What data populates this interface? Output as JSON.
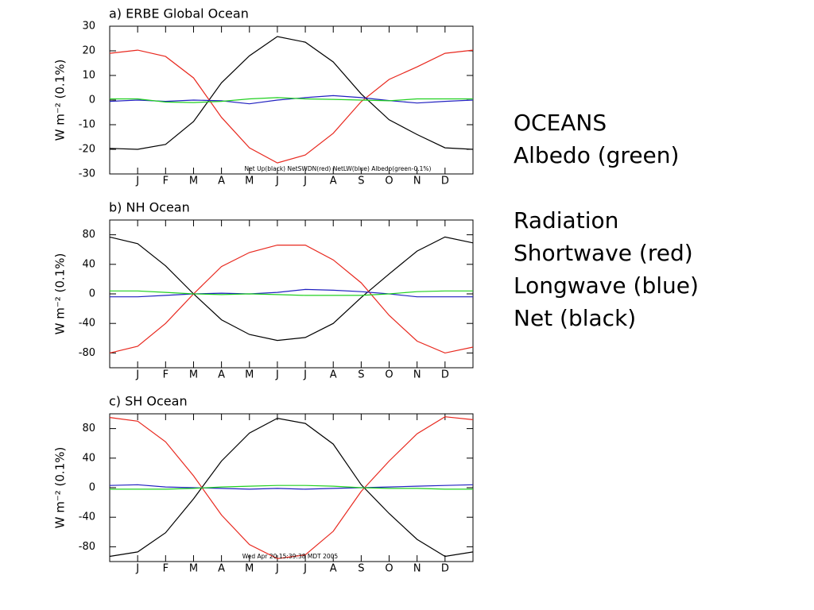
{
  "chart_data": [
    {
      "type": "line",
      "title": "a) ERBE Global Ocean",
      "ylabel": "W m⁻² (0.1%)",
      "annotation": "Net Up(black) NetSWDN(red) NetLW(blue) Albedo(green-0.1%)",
      "categories": [
        null,
        "J",
        "F",
        "M",
        "A",
        "M",
        "J",
        "J",
        "A",
        "S",
        "O",
        "N",
        "D",
        null
      ],
      "ylim": [
        -30,
        30
      ],
      "yticks": [
        -30,
        -20,
        -10,
        0,
        10,
        20,
        30
      ],
      "series": [
        {
          "name": "Net Up",
          "color": "#000000",
          "values": [
            -19.6,
            -20,
            -18,
            -8.7,
            7,
            18,
            25.8,
            23.5,
            15.5,
            2.5,
            -8,
            -14,
            -19.4,
            -20
          ]
        },
        {
          "name": "NetSWDN",
          "color": "#e8281e",
          "values": [
            19,
            20.3,
            17.7,
            9,
            -7,
            -19.4,
            -25.5,
            -22.3,
            -13.5,
            -0.6,
            8.4,
            13.5,
            19,
            20.3
          ]
        },
        {
          "name": "NetLW",
          "color": "#2020c0",
          "values": [
            -0.5,
            0,
            -0.5,
            0,
            -0.3,
            -1.5,
            0,
            1,
            1.8,
            1,
            -0.2,
            -1.2,
            -0.5,
            0
          ]
        },
        {
          "name": "Albedo",
          "color": "#20d020",
          "values": [
            0.5,
            0.5,
            -0.8,
            -1,
            -0.5,
            0.5,
            1,
            0.5,
            0.3,
            0,
            -0.3,
            0.5,
            0.5,
            0.5
          ]
        }
      ]
    },
    {
      "type": "line",
      "title": "b) NH Ocean",
      "ylabel": "W m⁻² (0.1%)",
      "categories": [
        null,
        "J",
        "F",
        "M",
        "A",
        "M",
        "J",
        "J",
        "A",
        "S",
        "O",
        "N",
        "D",
        null
      ],
      "ylim": [
        -100,
        100
      ],
      "yticks": [
        -80,
        -40,
        0,
        40,
        80
      ],
      "series": [
        {
          "name": "Net Up",
          "color": "#000000",
          "values": [
            77,
            68,
            38,
            0,
            -35,
            -55,
            -63,
            -59,
            -40,
            -5,
            27,
            58,
            77,
            69
          ]
        },
        {
          "name": "NetSWDN",
          "color": "#e8281e",
          "values": [
            -80,
            -71,
            -40,
            0,
            37,
            56,
            66,
            66,
            46,
            15,
            -29,
            -64,
            -80,
            -72
          ]
        },
        {
          "name": "NetLW",
          "color": "#2020c0",
          "values": [
            -4,
            -4,
            -2,
            0,
            1,
            0,
            2,
            6,
            5,
            3,
            0,
            -4,
            -4,
            -4
          ]
        },
        {
          "name": "Albedo",
          "color": "#20d020",
          "values": [
            4,
            4,
            2,
            0,
            -1,
            0,
            -1,
            -2,
            -2,
            -2,
            0,
            3,
            4,
            4
          ]
        }
      ]
    },
    {
      "type": "line",
      "title": "c) SH Ocean",
      "ylabel": "W m⁻² (0.1%)",
      "annotation": "Wed Apr 20 15:39:38 MDT 2005",
      "categories": [
        null,
        "J",
        "F",
        "M",
        "A",
        "M",
        "J",
        "J",
        "A",
        "S",
        "O",
        "N",
        "D",
        null
      ],
      "ylim": [
        -100,
        100
      ],
      "yticks": [
        -80,
        -40,
        0,
        40,
        80
      ],
      "series": [
        {
          "name": "Net Up",
          "color": "#000000",
          "values": [
            -93,
            -87,
            -61,
            -15,
            36,
            74,
            94,
            87,
            59,
            4,
            -35,
            -70,
            -93,
            -87
          ]
        },
        {
          "name": "NetSWDN",
          "color": "#e8281e",
          "values": [
            95,
            90,
            62,
            16,
            -37,
            -77,
            -96,
            -91,
            -59,
            -5,
            36,
            73,
            96,
            92
          ]
        },
        {
          "name": "NetLW",
          "color": "#2020c0",
          "values": [
            3,
            4,
            1,
            0,
            -1,
            -2,
            -1,
            -2,
            -1,
            0,
            1,
            2,
            3,
            4
          ]
        },
        {
          "name": "Albedo",
          "color": "#20d020",
          "values": [
            -2,
            -2,
            -2,
            -1,
            1,
            2,
            3,
            3,
            2,
            0,
            -1,
            -1,
            -2,
            -2
          ]
        }
      ]
    }
  ],
  "side_text": [
    [
      {
        "text": "OCEANS",
        "color": "#000000"
      },
      {
        "text": "Albedo (green)",
        "color": "#33ee33"
      }
    ],
    [
      {
        "text": "Radiation",
        "color": "#000000"
      },
      {
        "text": "Shortwave (red)",
        "color": "#ee1111"
      },
      {
        "text": "Longwave (blue)",
        "color": "#2a2ab8"
      },
      {
        "text": "Net (black)",
        "color": "#000000"
      }
    ]
  ]
}
